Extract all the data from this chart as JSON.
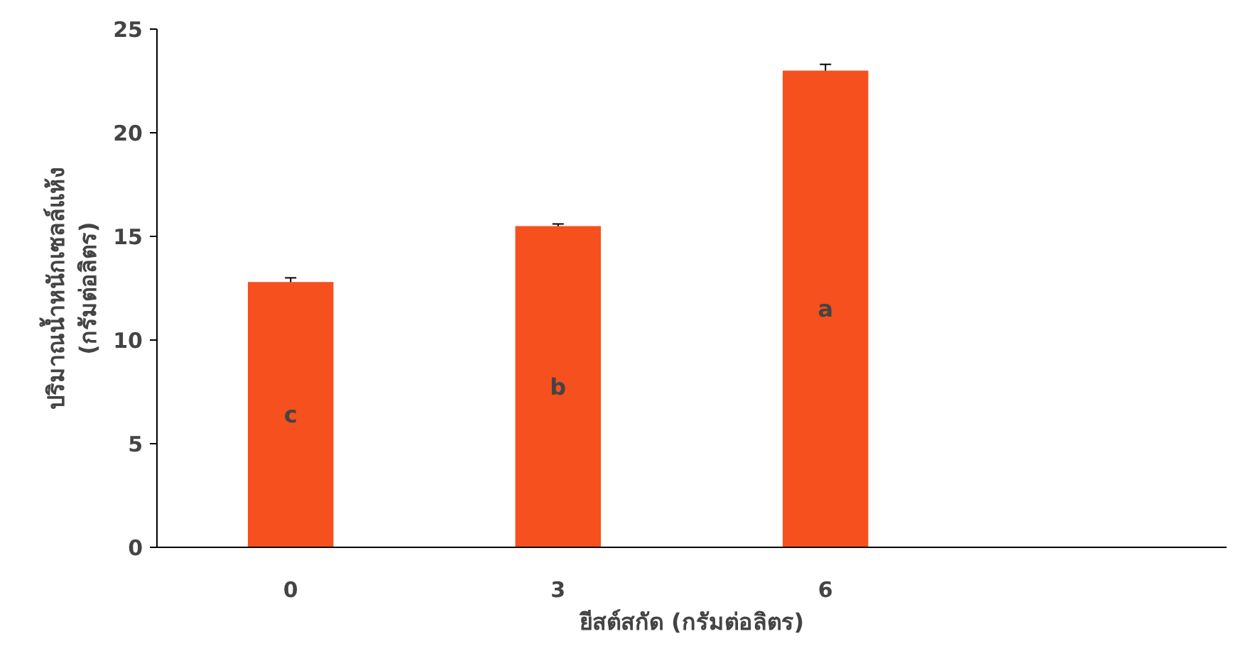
{
  "chart_data": {
    "type": "bar",
    "xlabel": "ยีสต์สกัด (กรัมต่อลิตร)",
    "ylabel": "ปริมาณน้ำหนักเซลล์แห้ง\n(กรัมต่อลิตร)",
    "categories": [
      "0",
      "3",
      "6"
    ],
    "values": [
      12.8,
      15.5,
      23.0
    ],
    "errors": [
      0.2,
      0.1,
      0.3
    ],
    "color": "#f5501e",
    "ylim": [
      0,
      25
    ],
    "yticks": [
      0,
      5,
      10,
      15,
      20,
      25
    ],
    "grid": false,
    "annotations": [
      "c",
      "b",
      "a"
    ]
  }
}
